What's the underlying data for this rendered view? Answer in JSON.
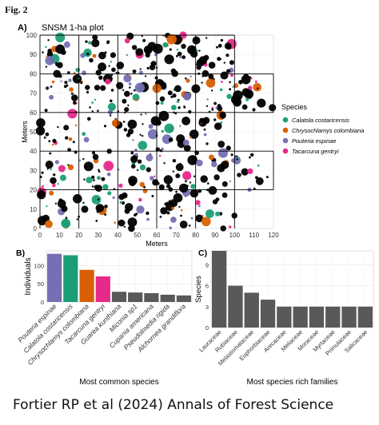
{
  "figure": {
    "label": "Fig. 2",
    "caption": "Fortier RP et al (2024) Annals of Forest Science"
  },
  "chart_data": [
    {
      "panel": "A)",
      "type": "scatter",
      "title": "SNSM 1-ha plot",
      "xlabel": "Meters",
      "ylabel": "Meters",
      "xlim": [
        0,
        120
      ],
      "ylim": [
        0,
        100
      ],
      "xticks": [
        0,
        10,
        20,
        30,
        40,
        50,
        60,
        70,
        80,
        90,
        100,
        110,
        120
      ],
      "yticks": [
        0,
        10,
        20,
        30,
        40,
        50,
        60,
        70,
        80,
        90,
        100
      ],
      "grid": "20 m quadrat lines",
      "legend": {
        "title": "Species",
        "position": "right",
        "entries": [
          {
            "name": "Calatola costaricensis",
            "color": "#1b9e77"
          },
          {
            "name": "Chrysochlamys colombiana",
            "color": "#d95f02"
          },
          {
            "name": "Pouteria espinae",
            "color": "#7570b3"
          },
          {
            "name": "Tacarcuna gentryi",
            "color": "#e7298a"
          }
        ]
      },
      "other_trees_color": "#000000"
    },
    {
      "panel": "B)",
      "type": "bar",
      "xlabel": "Most common species",
      "ylabel": "Individuals",
      "ylim": [
        0,
        140
      ],
      "yticks": [
        0,
        50,
        100
      ],
      "categories": [
        "Pouteria espinae",
        "Calatola costaricensis",
        "Chrysochlamys colombiana",
        "Tacarcuna gentryi",
        "Guarea kunthiana",
        "Miconia sp1",
        "Cupania americana",
        "Pseudolmedia rigida",
        "Alchornea grandiflora"
      ],
      "values": [
        132,
        128,
        88,
        70,
        28,
        26,
        24,
        20,
        18
      ],
      "colors": [
        "#7570b3",
        "#1b9e77",
        "#d95f02",
        "#e7298a",
        "#595959",
        "#595959",
        "#595959",
        "#595959",
        "#595959"
      ]
    },
    {
      "panel": "C)",
      "type": "bar",
      "xlabel": "Most species rich families",
      "ylabel": "Species",
      "ylim": [
        0,
        11
      ],
      "yticks": [
        0,
        3,
        6,
        9
      ],
      "categories": [
        "Lauraceae",
        "Rubiaceae",
        "Melastomataceae",
        "Euphorbiaceae",
        "Arecaceae",
        "Meliaceae",
        "Moraceae",
        "Myrtaceae",
        "Primulaceae",
        "Salicaceae"
      ],
      "values": [
        11,
        6,
        5,
        4,
        3,
        3,
        3,
        3,
        3,
        3
      ],
      "bar_color": "#595959"
    }
  ]
}
